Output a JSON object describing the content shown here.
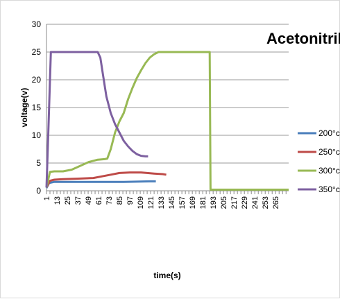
{
  "chart_data": {
    "type": "line",
    "title": "Acetonitrile",
    "xlabel": "time(s)",
    "ylabel": "voltage(v)",
    "ylim": [
      0,
      30
    ],
    "yticks": [
      "0",
      "5",
      "10",
      "15",
      "20",
      "25",
      "30"
    ],
    "xlim": [
      1,
      280
    ],
    "xticks": [
      "1",
      "13",
      "25",
      "37",
      "49",
      "61",
      "73",
      "85",
      "97",
      "109",
      "121",
      "133",
      "145",
      "157",
      "169",
      "181",
      "193",
      "205",
      "217",
      "229",
      "241",
      "253",
      "265"
    ],
    "grid": "horizontal",
    "legend_position": "right",
    "series": [
      {
        "name": "200°c",
        "color": "#4a7ebb",
        "points": [
          [
            1,
            0.5
          ],
          [
            4,
            1.4
          ],
          [
            10,
            1.6
          ],
          [
            30,
            1.6
          ],
          [
            60,
            1.6
          ],
          [
            90,
            1.6
          ],
          [
            120,
            1.7
          ],
          [
            127,
            1.7
          ]
        ]
      },
      {
        "name": "250°c",
        "color": "#be4b48",
        "points": [
          [
            1,
            0.6
          ],
          [
            5,
            1.8
          ],
          [
            10,
            2.0
          ],
          [
            20,
            2.1
          ],
          [
            40,
            2.2
          ],
          [
            55,
            2.3
          ],
          [
            65,
            2.6
          ],
          [
            75,
            2.9
          ],
          [
            85,
            3.2
          ],
          [
            97,
            3.3
          ],
          [
            110,
            3.3
          ],
          [
            125,
            3.1
          ],
          [
            135,
            3.0
          ],
          [
            139,
            2.9
          ]
        ]
      },
      {
        "name": "300°c",
        "color": "#98b954",
        "points": [
          [
            1,
            0.6
          ],
          [
            5,
            3.4
          ],
          [
            10,
            3.5
          ],
          [
            20,
            3.5
          ],
          [
            30,
            3.8
          ],
          [
            40,
            4.5
          ],
          [
            50,
            5.2
          ],
          [
            60,
            5.6
          ],
          [
            68,
            5.7
          ],
          [
            71,
            5.8
          ],
          [
            75,
            7.5
          ],
          [
            80,
            10.5
          ],
          [
            85,
            12.5
          ],
          [
            90,
            14.0
          ],
          [
            95,
            16.5
          ],
          [
            100,
            18.5
          ],
          [
            105,
            20.3
          ],
          [
            110,
            21.7
          ],
          [
            115,
            23.0
          ],
          [
            120,
            24.0
          ],
          [
            125,
            24.6
          ],
          [
            130,
            25.0
          ],
          [
            160,
            25.0
          ],
          [
            187,
            25.0
          ],
          [
            189,
            25.0
          ],
          [
            190,
            0.2
          ],
          [
            280,
            0.2
          ]
        ]
      },
      {
        "name": "350°c",
        "color": "#7d60a0",
        "points": [
          [
            1,
            0.6
          ],
          [
            3,
            10.0
          ],
          [
            6,
            25.0
          ],
          [
            20,
            25.0
          ],
          [
            40,
            25.0
          ],
          [
            55,
            25.0
          ],
          [
            60,
            25.0
          ],
          [
            63,
            24.0
          ],
          [
            66,
            21.0
          ],
          [
            70,
            17.0
          ],
          [
            75,
            14.0
          ],
          [
            80,
            12.0
          ],
          [
            85,
            10.5
          ],
          [
            90,
            9.0
          ],
          [
            95,
            8.0
          ],
          [
            100,
            7.2
          ],
          [
            105,
            6.6
          ],
          [
            110,
            6.3
          ],
          [
            115,
            6.2
          ],
          [
            118,
            6.2
          ]
        ]
      }
    ]
  }
}
